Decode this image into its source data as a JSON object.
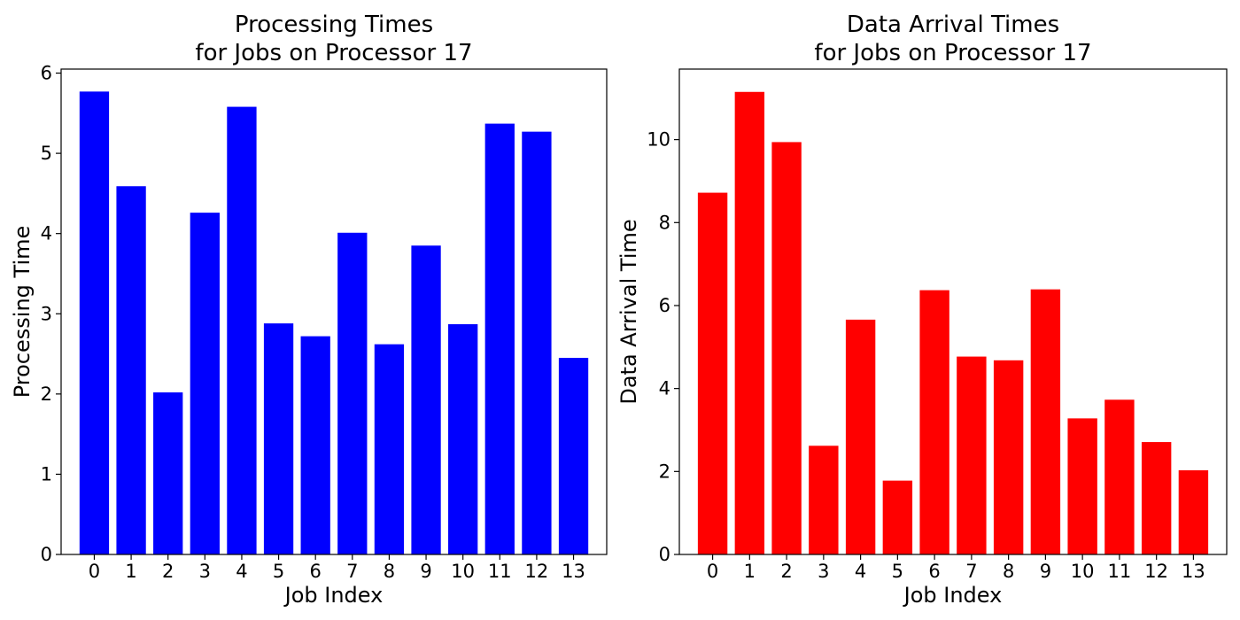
{
  "chart_data": [
    {
      "type": "bar",
      "title_lines": [
        "Processing Times",
        "for Jobs on Processor 17"
      ],
      "xlabel": "Job Index",
      "ylabel": "Processing Time",
      "categories": [
        "0",
        "1",
        "2",
        "3",
        "4",
        "5",
        "6",
        "7",
        "8",
        "9",
        "10",
        "11",
        "12",
        "13"
      ],
      "values": [
        5.77,
        4.59,
        2.02,
        4.26,
        5.58,
        2.88,
        2.72,
        4.01,
        2.62,
        3.85,
        2.87,
        5.37,
        5.27,
        2.45
      ],
      "ylim": [
        0,
        6.05
      ],
      "yticks": [
        0,
        1,
        2,
        3,
        4,
        5,
        6
      ],
      "color": "#0000ff",
      "grid": false
    },
    {
      "type": "bar",
      "title_lines": [
        "Data Arrival Times",
        "for Jobs on Processor 17"
      ],
      "xlabel": "Job Index",
      "ylabel": "Data Arrival Time",
      "categories": [
        "0",
        "1",
        "2",
        "3",
        "4",
        "5",
        "6",
        "7",
        "8",
        "9",
        "10",
        "11",
        "12",
        "13"
      ],
      "values": [
        8.72,
        11.15,
        9.94,
        2.62,
        5.66,
        1.78,
        6.37,
        4.77,
        4.68,
        6.39,
        3.28,
        3.73,
        2.71,
        2.03
      ],
      "ylim": [
        0,
        11.7
      ],
      "yticks": [
        0,
        2,
        4,
        6,
        8,
        10
      ],
      "color": "#ff0000",
      "grid": false
    }
  ]
}
